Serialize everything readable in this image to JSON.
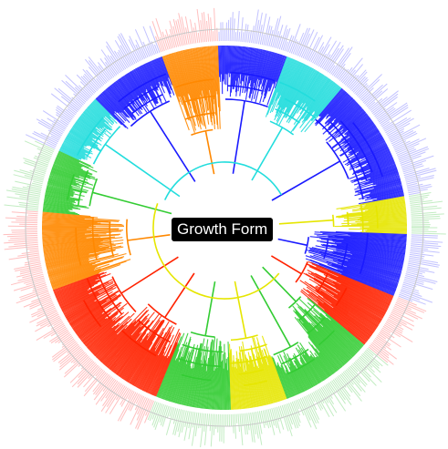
{
  "figure": {
    "center_label": "Growth Form",
    "palette": {
      "blue": "#1a1aff",
      "cyan": "#22dddd",
      "green": "#33cc33",
      "yellow": "#e6e600",
      "orange": "#ff8800",
      "red": "#ff2200",
      "tip_blue": "#8f8fff",
      "tip_red": "#ff8a8a",
      "tip_green": "#8fdc8f",
      "ring_line": "#c8c8c8"
    }
  }
}
